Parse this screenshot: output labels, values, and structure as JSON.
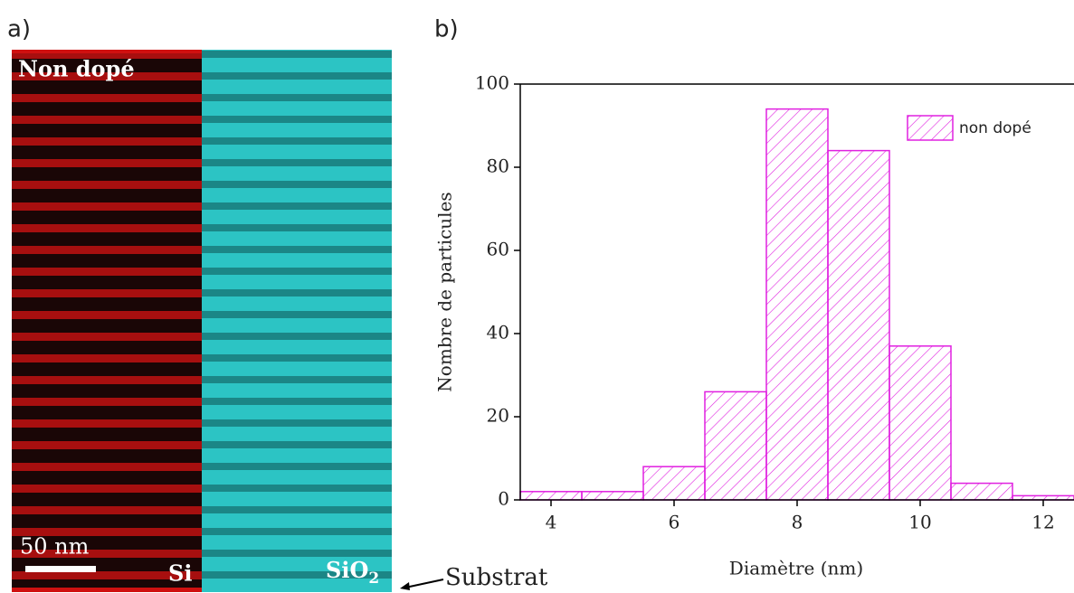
{
  "panel_a": {
    "label": "a)",
    "title": "Non dopé",
    "scale_bar": "50 nm",
    "left_element": "Si",
    "right_element": {
      "base": "SiO",
      "sub": "2"
    },
    "substrate": "Substrat"
  },
  "chart_data": {
    "type": "histogram",
    "label": "b)",
    "xlabel": "Diamètre (nm)",
    "ylabel": "Nombre de particules",
    "bins": [
      3.5,
      4.5,
      5.5,
      6.5,
      7.5,
      8.5,
      9.5,
      10.5,
      11.5,
      12.5
    ],
    "series": [
      {
        "name": "non dopé",
        "color": "#e020e0",
        "values": [
          2,
          2,
          8,
          26,
          94,
          84,
          37,
          4,
          1
        ]
      }
    ],
    "xlim": [
      3.5,
      12.5
    ],
    "xticks": [
      4,
      6,
      8,
      10,
      12
    ],
    "ylim": [
      0,
      100
    ],
    "yticks": [
      0,
      20,
      40,
      60,
      80,
      100
    ]
  }
}
